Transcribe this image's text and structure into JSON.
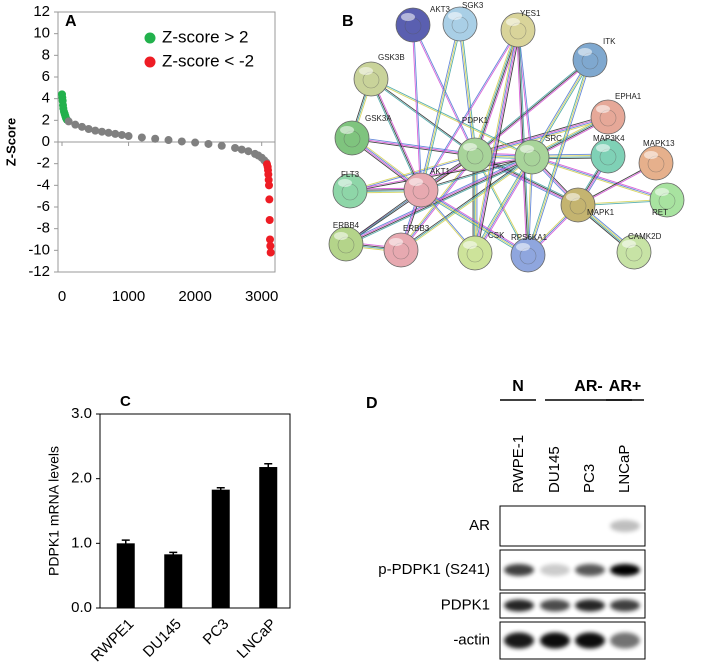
{
  "chart_data": [
    {
      "type": "scatter",
      "label": "A",
      "ylabel": "Z-Score",
      "xlim": [
        -60,
        3200
      ],
      "xticks": [
        0,
        1000,
        2000,
        3000
      ],
      "ylim": [
        -12,
        12
      ],
      "yticks": [
        -12,
        -10,
        -8,
        -6,
        -4,
        -2,
        0,
        2,
        4,
        6,
        8,
        10,
        12
      ],
      "legend": "upper right",
      "series": [
        {
          "name": "Z-score > 2",
          "color": "#22b14c",
          "x": [
            0,
            5,
            10,
            15,
            20,
            30,
            40,
            50,
            60,
            75
          ],
          "values": [
            4.4,
            4.1,
            3.8,
            3.4,
            3.1,
            2.8,
            2.6,
            2.4,
            2.2,
            2.05
          ]
        },
        {
          "color": "#808080",
          "x": [
            100,
            200,
            300,
            400,
            500,
            600,
            700,
            800,
            900,
            1000,
            1200,
            1400,
            1600,
            1800,
            2000,
            2200,
            2400,
            2600,
            2700,
            2800,
            2900,
            2950,
            3000,
            3040,
            3070
          ],
          "values": [
            1.9,
            1.6,
            1.4,
            1.2,
            1.05,
            0.95,
            0.85,
            0.75,
            0.65,
            0.55,
            0.42,
            0.3,
            0.18,
            0.05,
            -0.05,
            -0.18,
            -0.35,
            -0.55,
            -0.7,
            -0.85,
            -1.1,
            -1.25,
            -1.45,
            -1.7,
            -1.9
          ]
        },
        {
          "name": "Z-score < -2",
          "color": "#ee1c24",
          "x": [
            3080,
            3090,
            3095,
            3100,
            3105,
            3110,
            3115,
            3120,
            3125,
            3130,
            3135
          ],
          "values": [
            -2.05,
            -2.3,
            -2.6,
            -3.0,
            -3.5,
            -4.0,
            -5.3,
            -7.2,
            -9.0,
            -9.6,
            -10.2
          ]
        }
      ]
    },
    {
      "type": "bar",
      "label": "C",
      "ylabel": "PDPK1 mRNA levels",
      "categories": [
        "RWPE1",
        "DU145",
        "PC3",
        "LNCaP"
      ],
      "values": [
        1.0,
        0.83,
        1.83,
        2.18
      ],
      "errors": [
        0.05,
        0.03,
        0.03,
        0.05
      ],
      "color": "#000000",
      "ylim": [
        0,
        3
      ],
      "yticks": [
        {
          "value": 0,
          "label": "0.0"
        },
        {
          "value": 1,
          "label": "1.0"
        },
        {
          "value": 2,
          "label": "2.0"
        },
        {
          "value": 3,
          "label": "3.0"
        }
      ]
    }
  ],
  "network": {
    "label": "B",
    "nodes": [
      {
        "label": "AKT3"
      },
      {
        "label": "SGK3"
      },
      {
        "label": "YES1"
      },
      {
        "label": "ITK"
      },
      {
        "label": "GSK3B"
      },
      {
        "label": "EPHA1"
      },
      {
        "label": "GSK3A"
      },
      {
        "label": "PDPK1"
      },
      {
        "label": "SRC"
      },
      {
        "label": "MAP3K4"
      },
      {
        "label": "MAPK13"
      },
      {
        "label": "FLT3"
      },
      {
        "label": "AKT1"
      },
      {
        "label": "RET"
      },
      {
        "label": "MAPK1"
      },
      {
        "label": "ERBB4"
      },
      {
        "label": "ERBB3"
      },
      {
        "label": "CSK"
      },
      {
        "label": "RPS6KA1"
      },
      {
        "label": "CAMK2D"
      }
    ]
  },
  "blot": {
    "label": "D",
    "groups": [
      {
        "label": "N"
      },
      {
        "label": "AR-"
      },
      {
        "label": "AR+"
      }
    ],
    "lanes": [
      "RWPE-1",
      "DU145",
      "PC3",
      "LNCaP"
    ],
    "rows": [
      "AR",
      "p-PDPK1 (S241)",
      "PDPK1",
      "-actin"
    ]
  }
}
